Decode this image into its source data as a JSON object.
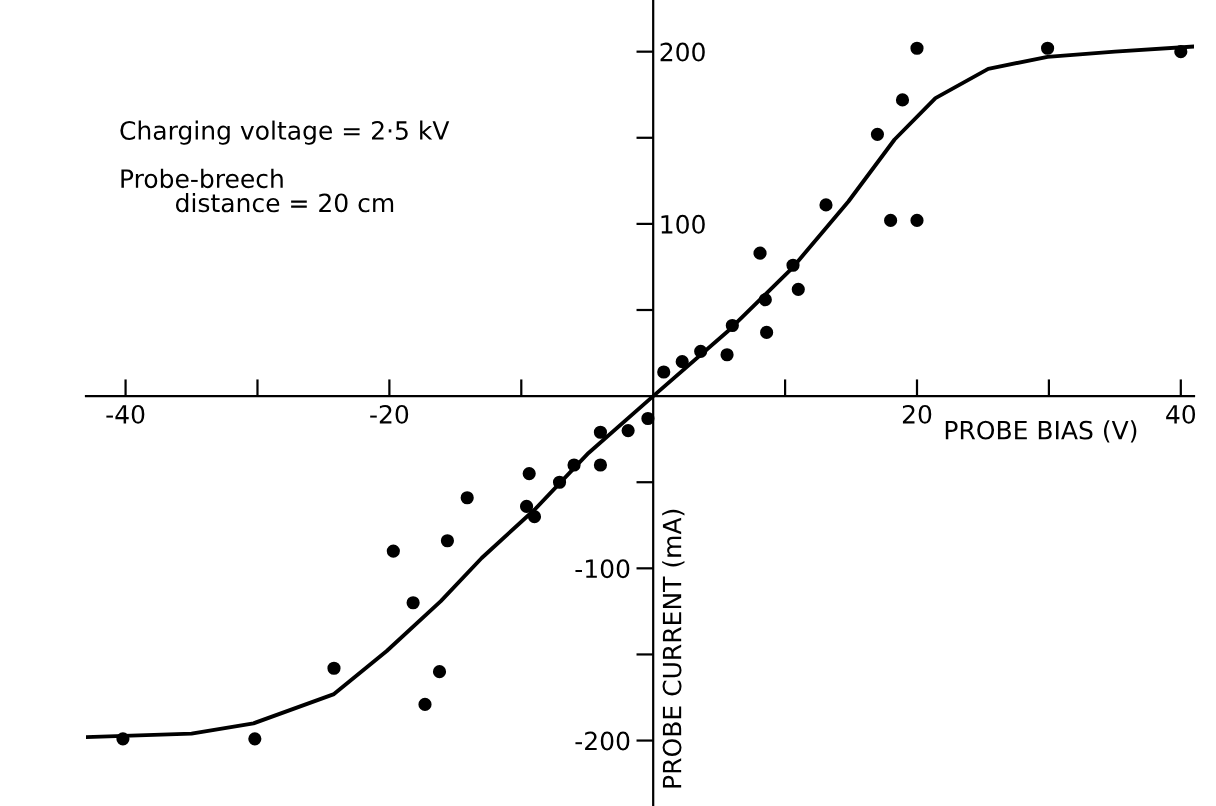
{
  "chart_data": {
    "type": "scatter",
    "xlabel": "PROBE BIAS (V)",
    "y2label": "PROBE CURRENT (mA)",
    "annotations": [
      "Charging voltage = 2·5 kV",
      "Probe-breech\n       distance = 20 cm"
    ],
    "xlim": [
      -43,
      41
    ],
    "ylim": [
      -238,
      230
    ],
    "xticks": [
      -40,
      {
        "value": -30,
        "label": null
      },
      -20,
      {
        "value": -10,
        "label": null
      },
      {
        "value": 10,
        "label": null
      },
      20,
      {
        "value": 30,
        "label": null
      },
      40
    ],
    "yticks": [
      {
        "value": -200,
        "label": "-200"
      },
      {
        "value": -150,
        "label": null
      },
      {
        "value": -100,
        "label": "-100"
      },
      {
        "value": -50,
        "label": null
      }
    ],
    "y2lim": [
      -238,
      230
    ],
    "y2ticks": [
      {
        "value": 50,
        "label": null
      },
      100,
      {
        "value": 150,
        "label": null
      },
      200
    ],
    "grid": false,
    "legend": false,
    "series": [
      {
        "marker": "circle",
        "color": "#000000",
        "x": [
          -40.2,
          -30.2,
          -24.2,
          -17.3,
          -16.2,
          -18.2,
          -19.7,
          -15.6,
          -14.1,
          -9.6,
          -9.0,
          -9.4,
          -7.1,
          -6.0,
          -4.0,
          -4.0,
          -1.9,
          -0.4,
          0.8,
          2.2,
          3.6,
          5.6,
          6.0,
          8.1,
          8.5,
          8.6,
          10.6,
          11.0,
          13.1,
          17.0,
          18.0,
          18.9,
          20.0,
          20.0,
          29.9,
          40.0
        ],
        "values": [
          -199,
          -199,
          -158,
          -179,
          -160,
          -120,
          -90,
          -84,
          -59,
          -64,
          -70,
          -45,
          -50,
          -40,
          -40,
          -21,
          -20,
          -13,
          14,
          20,
          26,
          24,
          41,
          83,
          56,
          37,
          76,
          62,
          111,
          152,
          102,
          172,
          202,
          102,
          202,
          200
        ]
      },
      {
        "type": "line",
        "marker": "none",
        "line_style": "solid",
        "color": "#000000",
        "x": [
          -43,
          -35,
          -30.3,
          -24.2,
          -20.2,
          -16.1,
          -13,
          -9,
          -4.9,
          0,
          5.7,
          10.5,
          14.8,
          18.3,
          21.4,
          25.4,
          29.9,
          35,
          41
        ],
        "values": [
          -198,
          -196,
          -190,
          -173,
          -148,
          -119,
          -94,
          -66,
          -33,
          0,
          38,
          74,
          113,
          149,
          173,
          190,
          197,
          200,
          203
        ]
      }
    ]
  }
}
